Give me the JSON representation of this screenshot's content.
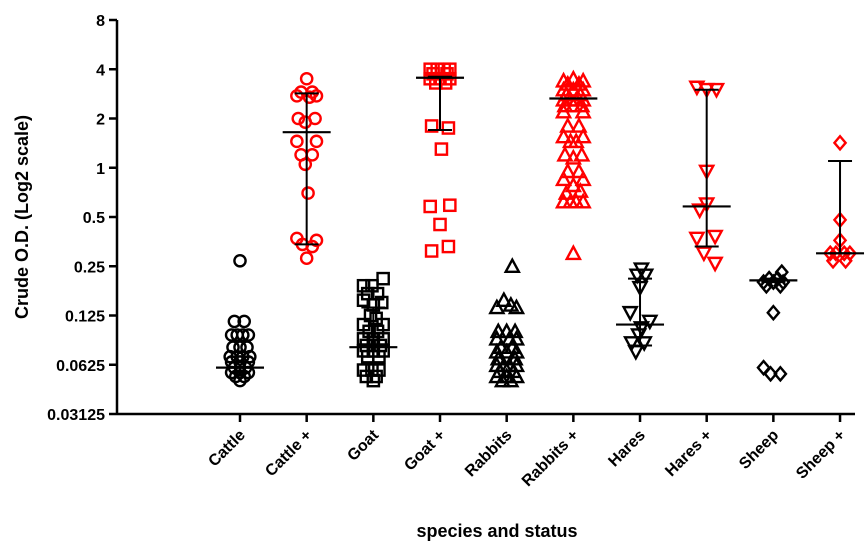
{
  "chart_data": {
    "type": "scatter",
    "title": "",
    "xlabel": "species and status",
    "ylabel": "Crude O.D. (Log2 scale)",
    "y_scale": "log2",
    "ylim": [
      0.03125,
      8
    ],
    "y_ticks": [
      {
        "value": 8,
        "label": "8"
      },
      {
        "value": 4,
        "label": "4"
      },
      {
        "value": 2,
        "label": "2"
      },
      {
        "value": 1,
        "label": "1"
      },
      {
        "value": 0.5,
        "label": "0.5"
      },
      {
        "value": 0.25,
        "label": "0.25"
      },
      {
        "value": 0.125,
        "label": "0.125"
      },
      {
        "value": 0.0625,
        "label": "0.0625"
      },
      {
        "value": 0.03125,
        "label": "0.03125"
      }
    ],
    "categories": [
      "Cattle",
      "Cattle +",
      "Goat",
      "Goat +",
      "Rabbits",
      "Rabbits +",
      "Hares",
      "Hares +",
      "Sheep",
      "Sheep +"
    ],
    "grid": false,
    "legend": "none",
    "series": [
      {
        "category": "Cattle",
        "marker": "circle",
        "color": "#000000",
        "median": 0.06,
        "error": [
          0.06,
          0.06
        ],
        "points": [
          [
            0,
            0.27
          ],
          [
            -0.2,
            0.115
          ],
          [
            0.15,
            0.115
          ],
          [
            -0.3,
            0.095
          ],
          [
            -0.1,
            0.095
          ],
          [
            0.1,
            0.095
          ],
          [
            0.3,
            0.095
          ],
          [
            -0.25,
            0.08
          ],
          [
            0,
            0.08
          ],
          [
            0.25,
            0.08
          ],
          [
            -0.35,
            0.07
          ],
          [
            -0.1,
            0.07
          ],
          [
            0.1,
            0.07
          ],
          [
            0.35,
            0.07
          ],
          [
            -0.3,
            0.065
          ],
          [
            0,
            0.065
          ],
          [
            0.3,
            0.065
          ],
          [
            -0.2,
            0.06
          ],
          [
            0.2,
            0.06
          ],
          [
            -0.3,
            0.056
          ],
          [
            0,
            0.056
          ],
          [
            0.3,
            0.056
          ],
          [
            -0.15,
            0.053
          ],
          [
            0.15,
            0.053
          ],
          [
            0,
            0.05
          ]
        ]
      },
      {
        "category": "Cattle +",
        "marker": "circle",
        "color": "#ff0000",
        "median": 1.65,
        "error": [
          0.34,
          2.85
        ],
        "points": [
          [
            0,
            3.5
          ],
          [
            -0.2,
            2.9
          ],
          [
            0.2,
            2.9
          ],
          [
            -0.35,
            2.75
          ],
          [
            0.35,
            2.75
          ],
          [
            0.1,
            2.7
          ],
          [
            -0.3,
            2.0
          ],
          [
            0.3,
            2.0
          ],
          [
            -0.05,
            1.9
          ],
          [
            -0.35,
            1.45
          ],
          [
            0.35,
            1.45
          ],
          [
            -0.2,
            1.2
          ],
          [
            0.2,
            1.2
          ],
          [
            -0.05,
            1.05
          ],
          [
            0.05,
            0.7
          ],
          [
            -0.35,
            0.37
          ],
          [
            0.35,
            0.36
          ],
          [
            -0.15,
            0.34
          ],
          [
            0.2,
            0.33
          ],
          [
            0,
            0.28
          ]
        ]
      },
      {
        "category": "Goat",
        "marker": "square",
        "color": "#000000",
        "median": 0.08,
        "error": [
          0.07,
          0.14
        ],
        "points": [
          [
            -0.35,
            0.19
          ],
          [
            -0.05,
            0.19
          ],
          [
            0.35,
            0.21
          ],
          [
            -0.2,
            0.17
          ],
          [
            0.15,
            0.17
          ],
          [
            -0.35,
            0.155
          ],
          [
            0.3,
            0.15
          ],
          [
            0,
            0.145
          ],
          [
            -0.1,
            0.125
          ],
          [
            0.1,
            0.12
          ],
          [
            -0.35,
            0.11
          ],
          [
            0.35,
            0.11
          ],
          [
            -0.15,
            0.1
          ],
          [
            0.15,
            0.1
          ],
          [
            -0.35,
            0.09
          ],
          [
            0,
            0.09
          ],
          [
            0.35,
            0.09
          ],
          [
            -0.25,
            0.082
          ],
          [
            0.25,
            0.082
          ],
          [
            -0.35,
            0.076
          ],
          [
            0,
            0.076
          ],
          [
            0.35,
            0.076
          ],
          [
            -0.2,
            0.07
          ],
          [
            0.2,
            0.07
          ],
          [
            -0.35,
            0.058
          ],
          [
            -0.05,
            0.058
          ],
          [
            0.2,
            0.058
          ],
          [
            -0.25,
            0.053
          ],
          [
            0.1,
            0.053
          ],
          [
            0,
            0.05
          ]
        ]
      },
      {
        "category": "Goat +",
        "marker": "square",
        "color": "#ff0000",
        "median": 3.55,
        "error": [
          1.7,
          3.6
        ],
        "points": [
          [
            -0.35,
            4.0
          ],
          [
            -0.1,
            4.0
          ],
          [
            0.15,
            4.0
          ],
          [
            0.35,
            4.0
          ],
          [
            -0.25,
            3.75
          ],
          [
            0.25,
            3.75
          ],
          [
            -0.35,
            3.5
          ],
          [
            0,
            3.5
          ],
          [
            0.35,
            3.5
          ],
          [
            -0.15,
            3.3
          ],
          [
            0.2,
            3.3
          ],
          [
            -0.3,
            1.8
          ],
          [
            0.3,
            1.75
          ],
          [
            0.05,
            1.3
          ],
          [
            -0.35,
            0.58
          ],
          [
            0.35,
            0.59
          ],
          [
            0,
            0.45
          ],
          [
            -0.3,
            0.31
          ],
          [
            0.3,
            0.33
          ]
        ]
      },
      {
        "category": "Rabbits",
        "marker": "triangle",
        "color": "#000000",
        "median": null,
        "error": null,
        "points": [
          [
            0.2,
            0.25
          ],
          [
            -0.1,
            0.155
          ],
          [
            0.15,
            0.145
          ],
          [
            -0.35,
            0.14
          ],
          [
            0.35,
            0.14
          ],
          [
            -0.3,
            0.1
          ],
          [
            0,
            0.1
          ],
          [
            0.3,
            0.1
          ],
          [
            -0.35,
            0.09
          ],
          [
            0.1,
            0.09
          ],
          [
            0.35,
            0.09
          ],
          [
            -0.2,
            0.08
          ],
          [
            0.2,
            0.08
          ],
          [
            -0.35,
            0.075
          ],
          [
            0,
            0.075
          ],
          [
            0.35,
            0.075
          ],
          [
            -0.3,
            0.068
          ],
          [
            0.3,
            0.068
          ],
          [
            -0.35,
            0.062
          ],
          [
            -0.1,
            0.062
          ],
          [
            0.1,
            0.062
          ],
          [
            0.35,
            0.062
          ],
          [
            -0.25,
            0.057
          ],
          [
            0.25,
            0.057
          ],
          [
            -0.35,
            0.053
          ],
          [
            0,
            0.053
          ],
          [
            0.35,
            0.053
          ],
          [
            -0.15,
            0.05
          ],
          [
            0.15,
            0.05
          ]
        ]
      },
      {
        "category": "Rabbits +",
        "marker": "triangle",
        "color": "#ff0000",
        "median": 2.65,
        "error": null,
        "points": [
          [
            -0.35,
            3.4
          ],
          [
            0,
            3.5
          ],
          [
            0.35,
            3.4
          ],
          [
            -0.2,
            3.25
          ],
          [
            0.2,
            3.25
          ],
          [
            -0.35,
            3.0
          ],
          [
            0,
            3.0
          ],
          [
            0.35,
            3.0
          ],
          [
            -0.25,
            2.8
          ],
          [
            0.25,
            2.8
          ],
          [
            -0.35,
            2.6
          ],
          [
            -0.1,
            2.6
          ],
          [
            0.1,
            2.6
          ],
          [
            0.35,
            2.6
          ],
          [
            -0.3,
            2.4
          ],
          [
            0,
            2.4
          ],
          [
            0.3,
            2.4
          ],
          [
            -0.35,
            2.2
          ],
          [
            0.35,
            2.2
          ],
          [
            -0.2,
            1.8
          ],
          [
            0.2,
            1.8
          ],
          [
            -0.35,
            1.55
          ],
          [
            0.35,
            1.55
          ],
          [
            -0.1,
            1.45
          ],
          [
            0.1,
            1.45
          ],
          [
            -0.3,
            1.2
          ],
          [
            0.3,
            1.2
          ],
          [
            0,
            1.15
          ],
          [
            -0.2,
            0.95
          ],
          [
            0.2,
            0.95
          ],
          [
            -0.35,
            0.85
          ],
          [
            0.35,
            0.85
          ],
          [
            0,
            0.78
          ],
          [
            -0.25,
            0.7
          ],
          [
            0.25,
            0.72
          ],
          [
            -0.35,
            0.62
          ],
          [
            -0.1,
            0.62
          ],
          [
            0.1,
            0.62
          ],
          [
            0.35,
            0.62
          ],
          [
            0,
            0.3
          ]
        ]
      },
      {
        "category": "Hares",
        "marker": "triangle-down",
        "color": "#000000",
        "median": 0.11,
        "error": [
          0.082,
          0.21
        ],
        "points": [
          [
            0.05,
            0.24
          ],
          [
            0.2,
            0.22
          ],
          [
            -0.1,
            0.22
          ],
          [
            0,
            0.185
          ],
          [
            -0.35,
            0.13
          ],
          [
            0.35,
            0.115
          ],
          [
            0.05,
            0.105
          ],
          [
            -0.05,
            0.095
          ],
          [
            -0.3,
            0.085
          ],
          [
            0.15,
            0.085
          ],
          [
            -0.15,
            0.075
          ]
        ]
      },
      {
        "category": "Hares +",
        "marker": "triangle-down",
        "color": "#ff0000",
        "median": 0.58,
        "error": [
          0.33,
          3.0
        ],
        "points": [
          [
            -0.35,
            3.1
          ],
          [
            0,
            3.0
          ],
          [
            0.35,
            3.0
          ],
          [
            0,
            0.95
          ],
          [
            0,
            0.6
          ],
          [
            -0.25,
            0.55
          ],
          [
            0.3,
            0.38
          ],
          [
            -0.35,
            0.37
          ],
          [
            -0.1,
            0.3
          ],
          [
            0.3,
            0.26
          ]
        ]
      },
      {
        "category": "Sheep",
        "marker": "diamond",
        "color": "#000000",
        "median": 0.205,
        "error": [
          0.2,
          0.21
        ],
        "points": [
          [
            0.3,
            0.23
          ],
          [
            -0.15,
            0.21
          ],
          [
            0.15,
            0.21
          ],
          [
            -0.35,
            0.2
          ],
          [
            0,
            0.2
          ],
          [
            0.35,
            0.2
          ],
          [
            -0.25,
            0.19
          ],
          [
            0.25,
            0.19
          ],
          [
            0,
            0.13
          ],
          [
            -0.35,
            0.06
          ],
          [
            -0.1,
            0.055
          ],
          [
            0.25,
            0.055
          ]
        ]
      },
      {
        "category": "Sheep +",
        "marker": "diamond",
        "color": "#ff0000",
        "median": 0.3,
        "error": [
          0.3,
          1.1
        ],
        "points": [
          [
            0,
            1.42
          ],
          [
            0,
            0.48
          ],
          [
            0,
            0.36
          ],
          [
            -0.35,
            0.3
          ],
          [
            -0.15,
            0.3
          ],
          [
            0.15,
            0.3
          ],
          [
            0.35,
            0.3
          ],
          [
            -0.25,
            0.27
          ],
          [
            0.2,
            0.27
          ]
        ]
      }
    ]
  }
}
